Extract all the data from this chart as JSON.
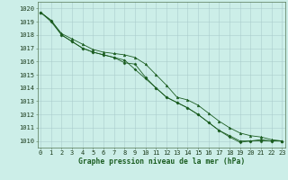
{
  "title": "Graphe pression niveau de la mer (hPa)",
  "bg_color": "#cceee8",
  "grid_color": "#aacccc",
  "line_color": "#1a5c20",
  "x_full": [
    0,
    1,
    2,
    3,
    4,
    5,
    6,
    7,
    8,
    9,
    10,
    11,
    12,
    13,
    14,
    15,
    16,
    17,
    18,
    19,
    20,
    21,
    22,
    23
  ],
  "s1_x": [
    0,
    1,
    2,
    3,
    4,
    5,
    6,
    7,
    8,
    9,
    10,
    11,
    12,
    13,
    14,
    15,
    16,
    17,
    18,
    19,
    20,
    21,
    22,
    23
  ],
  "s1_y": [
    1019.7,
    1019.1,
    1018.1,
    1017.7,
    1017.3,
    1016.9,
    1016.7,
    1016.6,
    1016.5,
    1016.3,
    1015.8,
    1015.0,
    1014.2,
    1013.3,
    1013.1,
    1012.7,
    1012.1,
    1011.5,
    1011.0,
    1010.6,
    1010.4,
    1010.3,
    1010.1,
    1010.0
  ],
  "s2_x": [
    0,
    1,
    2,
    3,
    4,
    5,
    6,
    7,
    8,
    9,
    10,
    11,
    12,
    13,
    14,
    15,
    16,
    17,
    18,
    19,
    20,
    21,
    22,
    23
  ],
  "s2_y": [
    1019.7,
    1019.0,
    1018.0,
    1017.5,
    1017.0,
    1016.7,
    1016.5,
    1016.3,
    1016.1,
    1015.4,
    1014.7,
    1014.0,
    1013.3,
    1012.9,
    1012.5,
    1012.0,
    1011.4,
    1010.8,
    1010.3,
    1009.9,
    1010.0,
    1010.1,
    1010.0,
    1010.0
  ],
  "s3_x": [
    0,
    1,
    2,
    3,
    4,
    5,
    6,
    7,
    8,
    9,
    10,
    11,
    12,
    13,
    14,
    15,
    16,
    17,
    18,
    19,
    20,
    21,
    22,
    23
  ],
  "s3_y": [
    1019.7,
    1019.1,
    1018.0,
    1017.5,
    1017.0,
    1016.7,
    1016.5,
    1016.3,
    1015.9,
    1015.8,
    1014.8,
    1014.0,
    1013.3,
    1012.9,
    1012.5,
    1012.0,
    1011.4,
    1010.8,
    1010.4,
    1010.0,
    1010.0,
    1010.0,
    1010.0,
    1010.0
  ],
  "ylim_min": 1009.5,
  "ylim_max": 1020.5,
  "yticks": [
    1010,
    1011,
    1012,
    1013,
    1014,
    1015,
    1016,
    1017,
    1018,
    1019,
    1020
  ],
  "xlim_min": -0.3,
  "xlim_max": 23.3,
  "tick_fontsize": 5.0,
  "xlabel_fontsize": 5.8
}
